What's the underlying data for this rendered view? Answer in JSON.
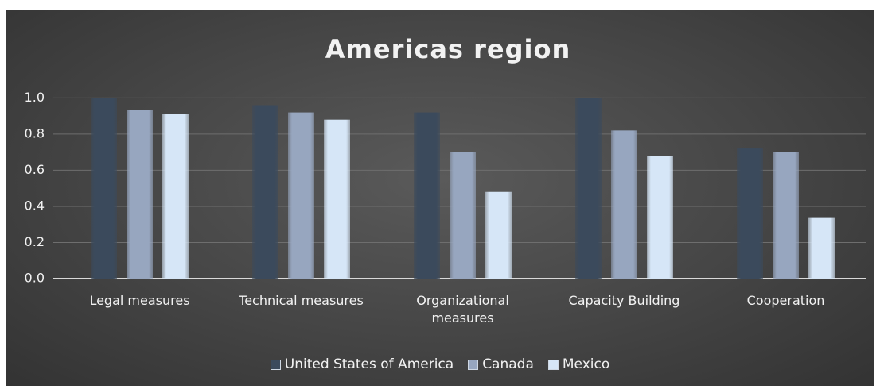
{
  "chart_data": {
    "type": "bar",
    "title": "Americas region",
    "categories": [
      "Legal measures",
      "Technical measures",
      "Organizational measures",
      "Capacity Building",
      "Cooperation"
    ],
    "series": [
      {
        "name": "United States of America",
        "color": "#3b4a5c",
        "values": [
          1.0,
          0.96,
          0.92,
          1.0,
          0.72
        ]
      },
      {
        "name": "Canada",
        "color": "#97a6bf",
        "values": [
          0.935,
          0.92,
          0.7,
          0.82,
          0.7
        ]
      },
      {
        "name": "Mexico",
        "color": "#d6e6f7",
        "values": [
          0.91,
          0.88,
          0.48,
          0.68,
          0.34
        ]
      }
    ],
    "ylim": [
      0,
      1.05
    ],
    "yticks": [
      {
        "value": 0,
        "label": "0.0"
      },
      0.2,
      0.4,
      0.6,
      0.8,
      {
        "value": 1,
        "label": "1.0"
      }
    ],
    "grid": true,
    "legend": "bottom"
  }
}
